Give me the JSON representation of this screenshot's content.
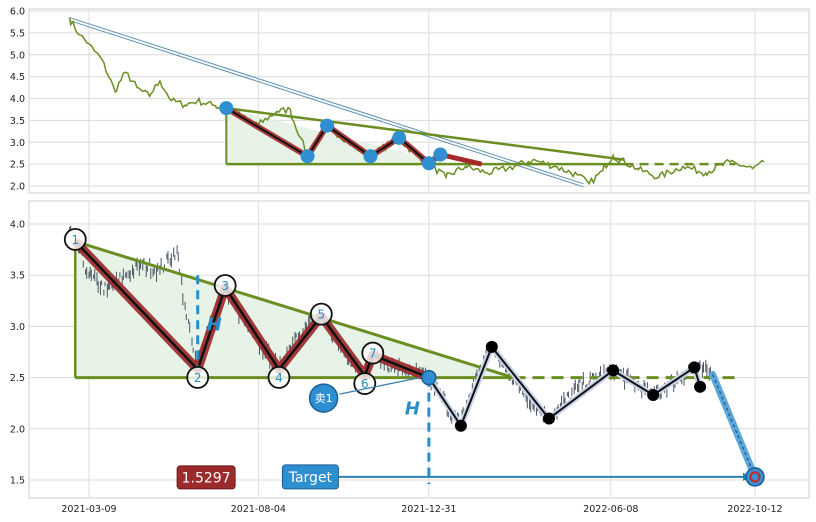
{
  "chart_data": [
    {
      "type": "line",
      "title": "",
      "ylim": [
        1.9,
        6.0
      ],
      "y_ticks": [
        "6.0",
        "5.5",
        "5.0",
        "4.5",
        "4.0",
        "3.5",
        "3.0",
        "2.5",
        "2.0"
      ],
      "grid": true,
      "price_color": "#6b8e23",
      "pattern_points": [
        {
          "t": "2021-07-07",
          "y": 3.78
        },
        {
          "t": "2021-09-16",
          "y": 2.68
        },
        {
          "t": "2021-10-03",
          "y": 3.38
        },
        {
          "t": "2021-11-10",
          "y": 2.68
        },
        {
          "t": "2021-12-05",
          "y": 3.1
        },
        {
          "t": "2021-12-31",
          "y": 2.52
        },
        {
          "t": "2022-01-10",
          "y": 2.72
        }
      ],
      "resistance": [
        {
          "t": "2021-07-07",
          "y": 3.78
        },
        {
          "t": "2022-06-20",
          "y": 2.6
        }
      ],
      "support": 2.5,
      "support_range": [
        "2021-07-07",
        "2022-09-25"
      ],
      "channel": [
        {
          "t": "2021-02-20",
          "y": 5.85
        },
        {
          "t": "2022-05-15",
          "y": 2.05
        }
      ],
      "price_series": [
        {
          "t": "2021-02-20",
          "y": 5.85
        },
        {
          "t": "2021-03-01",
          "y": 5.45
        },
        {
          "t": "2021-03-09",
          "y": 5.25
        },
        {
          "t": "2021-03-20",
          "y": 4.9
        },
        {
          "t": "2021-04-01",
          "y": 4.15
        },
        {
          "t": "2021-04-10",
          "y": 4.6
        },
        {
          "t": "2021-04-20",
          "y": 4.25
        },
        {
          "t": "2021-05-01",
          "y": 4.05
        },
        {
          "t": "2021-05-10",
          "y": 4.4
        },
        {
          "t": "2021-05-20",
          "y": 3.95
        },
        {
          "t": "2021-06-01",
          "y": 3.85
        },
        {
          "t": "2021-06-12",
          "y": 3.95
        },
        {
          "t": "2021-06-25",
          "y": 3.85
        },
        {
          "t": "2021-07-07",
          "y": 3.78
        },
        {
          "t": "2021-07-20",
          "y": 3.6
        },
        {
          "t": "2021-08-04",
          "y": 3.4
        },
        {
          "t": "2021-08-20",
          "y": 3.7
        },
        {
          "t": "2021-09-01",
          "y": 3.75
        },
        {
          "t": "2021-09-10",
          "y": 3.1
        },
        {
          "t": "2021-09-16",
          "y": 2.68
        },
        {
          "t": "2021-10-03",
          "y": 3.38
        },
        {
          "t": "2021-10-20",
          "y": 3.05
        },
        {
          "t": "2021-11-10",
          "y": 2.68
        },
        {
          "t": "2021-12-05",
          "y": 3.1
        },
        {
          "t": "2021-12-20",
          "y": 2.7
        },
        {
          "t": "2021-12-31",
          "y": 2.52
        },
        {
          "t": "2022-01-15",
          "y": 2.2
        },
        {
          "t": "2022-02-01",
          "y": 2.45
        },
        {
          "t": "2022-02-20",
          "y": 2.3
        },
        {
          "t": "2022-03-10",
          "y": 2.4
        },
        {
          "t": "2022-04-01",
          "y": 2.6
        },
        {
          "t": "2022-04-20",
          "y": 2.45
        },
        {
          "t": "2022-05-10",
          "y": 2.25
        },
        {
          "t": "2022-05-20",
          "y": 2.05
        },
        {
          "t": "2022-06-01",
          "y": 2.35
        },
        {
          "t": "2022-06-10",
          "y": 2.7
        },
        {
          "t": "2022-07-01",
          "y": 2.4
        },
        {
          "t": "2022-07-20",
          "y": 2.2
        },
        {
          "t": "2022-08-10",
          "y": 2.45
        },
        {
          "t": "2022-08-30",
          "y": 2.3
        },
        {
          "t": "2022-09-20",
          "y": 2.55
        },
        {
          "t": "2022-10-10",
          "y": 2.4
        },
        {
          "t": "2022-10-20",
          "y": 2.55
        }
      ]
    },
    {
      "type": "line",
      "title": "",
      "ylim": [
        1.3,
        4.2
      ],
      "y_ticks": [
        "4.0",
        "3.5",
        "3.0",
        "2.5",
        "2.0",
        "1.5"
      ],
      "x_ticks": [
        "2021-03-09",
        "2021-08-04",
        "2021-12-31",
        "2022-06-08",
        "2022-10-12"
      ],
      "grid": true,
      "price_color": "#4a5564",
      "pattern_color": "#9b2a2a",
      "trend_color": "#6b8e23",
      "accent_color": "#2590c9",
      "pattern_points": [
        {
          "label": "1",
          "t": "2021-02-25",
          "y": 3.83
        },
        {
          "label": "2",
          "t": "2021-06-12",
          "y": 2.58
        },
        {
          "label": "3",
          "t": "2021-07-06",
          "y": 3.38
        },
        {
          "label": "4",
          "t": "2021-08-22",
          "y": 2.58
        },
        {
          "label": "5",
          "t": "2021-09-28",
          "y": 3.1
        },
        {
          "label": "6",
          "t": "2021-11-05",
          "y": 2.52
        },
        {
          "label": "7",
          "t": "2021-11-12",
          "y": 2.72
        },
        {
          "label": "",
          "t": "2021-12-31",
          "y": 2.5
        }
      ],
      "resistance": [
        {
          "t": "2021-02-25",
          "y": 3.83
        },
        {
          "t": "2022-03-15",
          "y": 2.5
        }
      ],
      "support": 2.5,
      "support_range": [
        "2021-02-25",
        "2022-09-25"
      ],
      "height_marker": {
        "label": "H",
        "t": "2021-06-12",
        "y_from": 2.58,
        "y_to": 3.5
      },
      "projection_marker": {
        "label": "H",
        "t": "2021-12-31",
        "y_from": 2.5,
        "y_to": 1.5
      },
      "after_breakout": [
        {
          "t": "2021-12-31",
          "y": 2.5
        },
        {
          "t": "2022-01-28",
          "y": 2.03
        },
        {
          "t": "2022-02-24",
          "y": 2.8
        },
        {
          "t": "2022-04-15",
          "y": 2.1
        },
        {
          "t": "2022-06-10",
          "y": 2.57
        },
        {
          "t": "2022-07-15",
          "y": 2.33
        },
        {
          "t": "2022-08-20",
          "y": 2.6
        },
        {
          "t": "2022-08-25",
          "y": 2.41
        }
      ],
      "target_path": [
        {
          "t": "2022-09-05",
          "y": 2.53
        },
        {
          "t": "2022-10-12",
          "y": 1.53
        }
      ],
      "sell_label": "卖1",
      "target_label": "Target",
      "target_value": "1.5297",
      "target_value_color": "#9b2a2a",
      "price_series": [
        {
          "t": "2021-02-20",
          "y": 3.95
        },
        {
          "t": "2021-02-25",
          "y": 3.83
        },
        {
          "t": "2021-03-09",
          "y": 3.5
        },
        {
          "t": "2021-03-25",
          "y": 3.35
        },
        {
          "t": "2021-04-10",
          "y": 3.5
        },
        {
          "t": "2021-04-25",
          "y": 3.6
        },
        {
          "t": "2021-05-10",
          "y": 3.55
        },
        {
          "t": "2021-05-25",
          "y": 3.75
        },
        {
          "t": "2021-06-01",
          "y": 3.2
        },
        {
          "t": "2021-06-12",
          "y": 2.58
        },
        {
          "t": "2021-06-25",
          "y": 3.1
        },
        {
          "t": "2021-07-06",
          "y": 3.38
        },
        {
          "t": "2021-07-20",
          "y": 3.1
        },
        {
          "t": "2021-08-04",
          "y": 2.85
        },
        {
          "t": "2021-08-22",
          "y": 2.58
        },
        {
          "t": "2021-09-05",
          "y": 2.9
        },
        {
          "t": "2021-09-28",
          "y": 3.1
        },
        {
          "t": "2021-10-15",
          "y": 2.8
        },
        {
          "t": "2021-11-05",
          "y": 2.52
        },
        {
          "t": "2021-11-12",
          "y": 2.72
        },
        {
          "t": "2021-12-01",
          "y": 2.6
        },
        {
          "t": "2021-12-31",
          "y": 2.5
        },
        {
          "t": "2022-01-28",
          "y": 2.03
        },
        {
          "t": "2022-02-10",
          "y": 2.5
        },
        {
          "t": "2022-02-24",
          "y": 2.8
        },
        {
          "t": "2022-03-20",
          "y": 2.4
        },
        {
          "t": "2022-04-15",
          "y": 2.1
        },
        {
          "t": "2022-05-10",
          "y": 2.4
        },
        {
          "t": "2022-06-10",
          "y": 2.57
        },
        {
          "t": "2022-07-15",
          "y": 2.33
        },
        {
          "t": "2022-08-20",
          "y": 2.6
        },
        {
          "t": "2022-09-05",
          "y": 2.53
        }
      ]
    }
  ]
}
